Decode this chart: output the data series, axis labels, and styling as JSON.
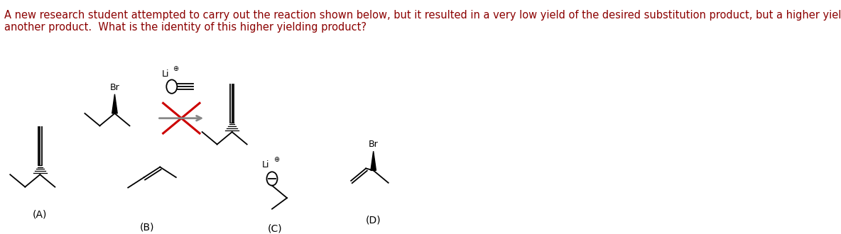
{
  "title_line1": "A new research student attempted to carry out the reaction shown below, but it resulted in a very low yield of the desired substitution product, but a higher yield of",
  "title_line2": "another product.  What is the identity of this higher yielding product?",
  "title_color": "#8B0000",
  "bg_color": "#ffffff",
  "label_A": "(A)",
  "label_B": "(B)",
  "label_C": "(C)",
  "label_D": "(D)",
  "black": "#000000",
  "red": "#cc0000",
  "gray": "#888888",
  "font_title": 10.5,
  "font_label": 10,
  "font_chem": 9
}
